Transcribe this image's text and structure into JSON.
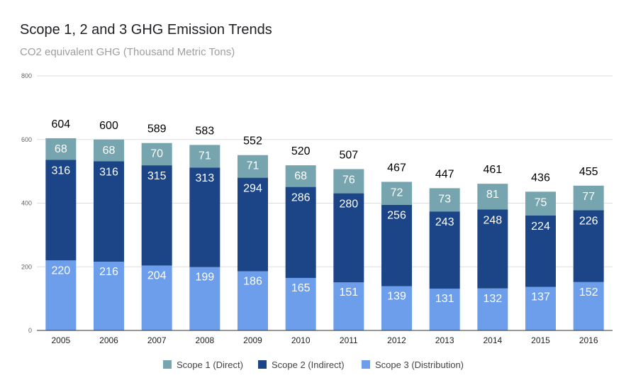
{
  "chart_data": {
    "type": "bar",
    "stacked": true,
    "title": "Scope 1, 2 and 3 GHG Emission Trends",
    "subtitle": "CO2 equivalent GHG (Thousand Metric Tons)",
    "categories": [
      "2005",
      "2006",
      "2007",
      "2008",
      "2009",
      "2010",
      "2011",
      "2012",
      "2013",
      "2014",
      "2015",
      "2016"
    ],
    "series": [
      {
        "name": "Scope 3 (Distribution)",
        "color": "#6d9eeb",
        "values": [
          220,
          216,
          204,
          199,
          186,
          165,
          151,
          139,
          131,
          132,
          137,
          152
        ]
      },
      {
        "name": "Scope 2 (Indirect)",
        "color": "#1c4587",
        "values": [
          316,
          316,
          315,
          313,
          294,
          286,
          280,
          256,
          243,
          248,
          224,
          226
        ]
      },
      {
        "name": "Scope 1 (Direct)",
        "color": "#76a5af",
        "values": [
          68,
          68,
          70,
          71,
          71,
          68,
          76,
          72,
          73,
          81,
          75,
          77
        ]
      }
    ],
    "totals": [
      604,
      600,
      589,
      583,
      552,
      520,
      507,
      467,
      447,
      461,
      436,
      455
    ],
    "yticks": [
      0,
      200,
      400,
      600,
      800
    ],
    "ylim": [
      0,
      800
    ],
    "grid": true,
    "legend_position": "bottom"
  }
}
